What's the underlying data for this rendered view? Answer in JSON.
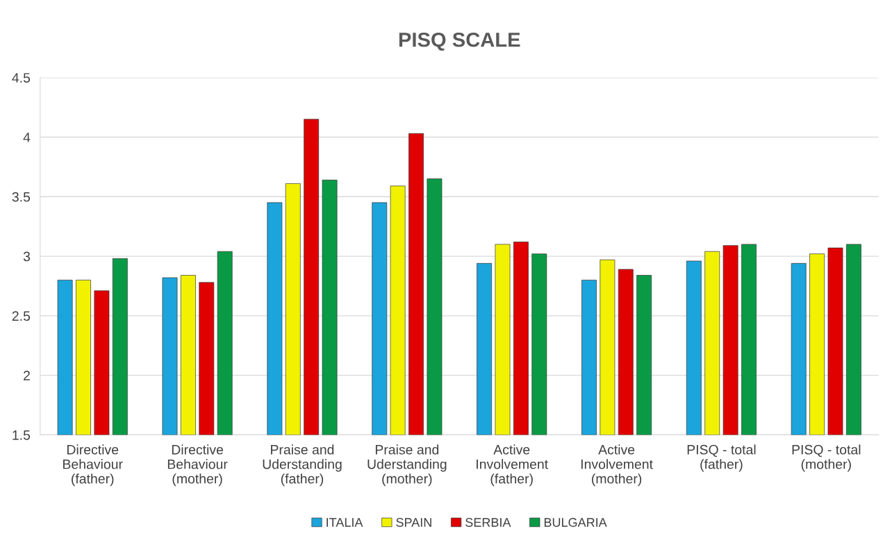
{
  "chart_data": {
    "type": "bar",
    "title": "PISQ SCALE",
    "categories": [
      "Directive\nBehaviour\n(father)",
      "Directive\nBehaviour\n(mother)",
      "Praise and\nUderstanding\n(father)",
      "Praise and\nUderstanding\n(mother)",
      "Active\nInvolvement\n(father)",
      "Active\nInvolvement\n(mother)",
      "PISQ - total\n(father)",
      "PISQ - total\n(mother)"
    ],
    "series": [
      {
        "name": "ITALIA",
        "color": "#1ca4dc",
        "values": [
          2.8,
          2.82,
          3.45,
          3.45,
          2.94,
          2.8,
          2.96,
          2.94
        ]
      },
      {
        "name": "SPAIN",
        "color": "#f2f200",
        "values": [
          2.8,
          2.84,
          3.61,
          3.59,
          3.1,
          2.97,
          3.04,
          3.02
        ]
      },
      {
        "name": "SERBIA",
        "color": "#e00000",
        "values": [
          2.71,
          2.78,
          4.15,
          4.03,
          3.12,
          2.89,
          3.09,
          3.07
        ]
      },
      {
        "name": "BULGARIA",
        "color": "#0a9a46",
        "values": [
          2.98,
          3.04,
          3.64,
          3.65,
          3.02,
          2.84,
          3.1,
          3.1
        ]
      }
    ],
    "ylim": [
      1.5,
      4.5
    ],
    "yticks": [
      1.5,
      2,
      2.5,
      3,
      3.5,
      4,
      4.5
    ],
    "grid": "y",
    "legend": "bottom"
  }
}
